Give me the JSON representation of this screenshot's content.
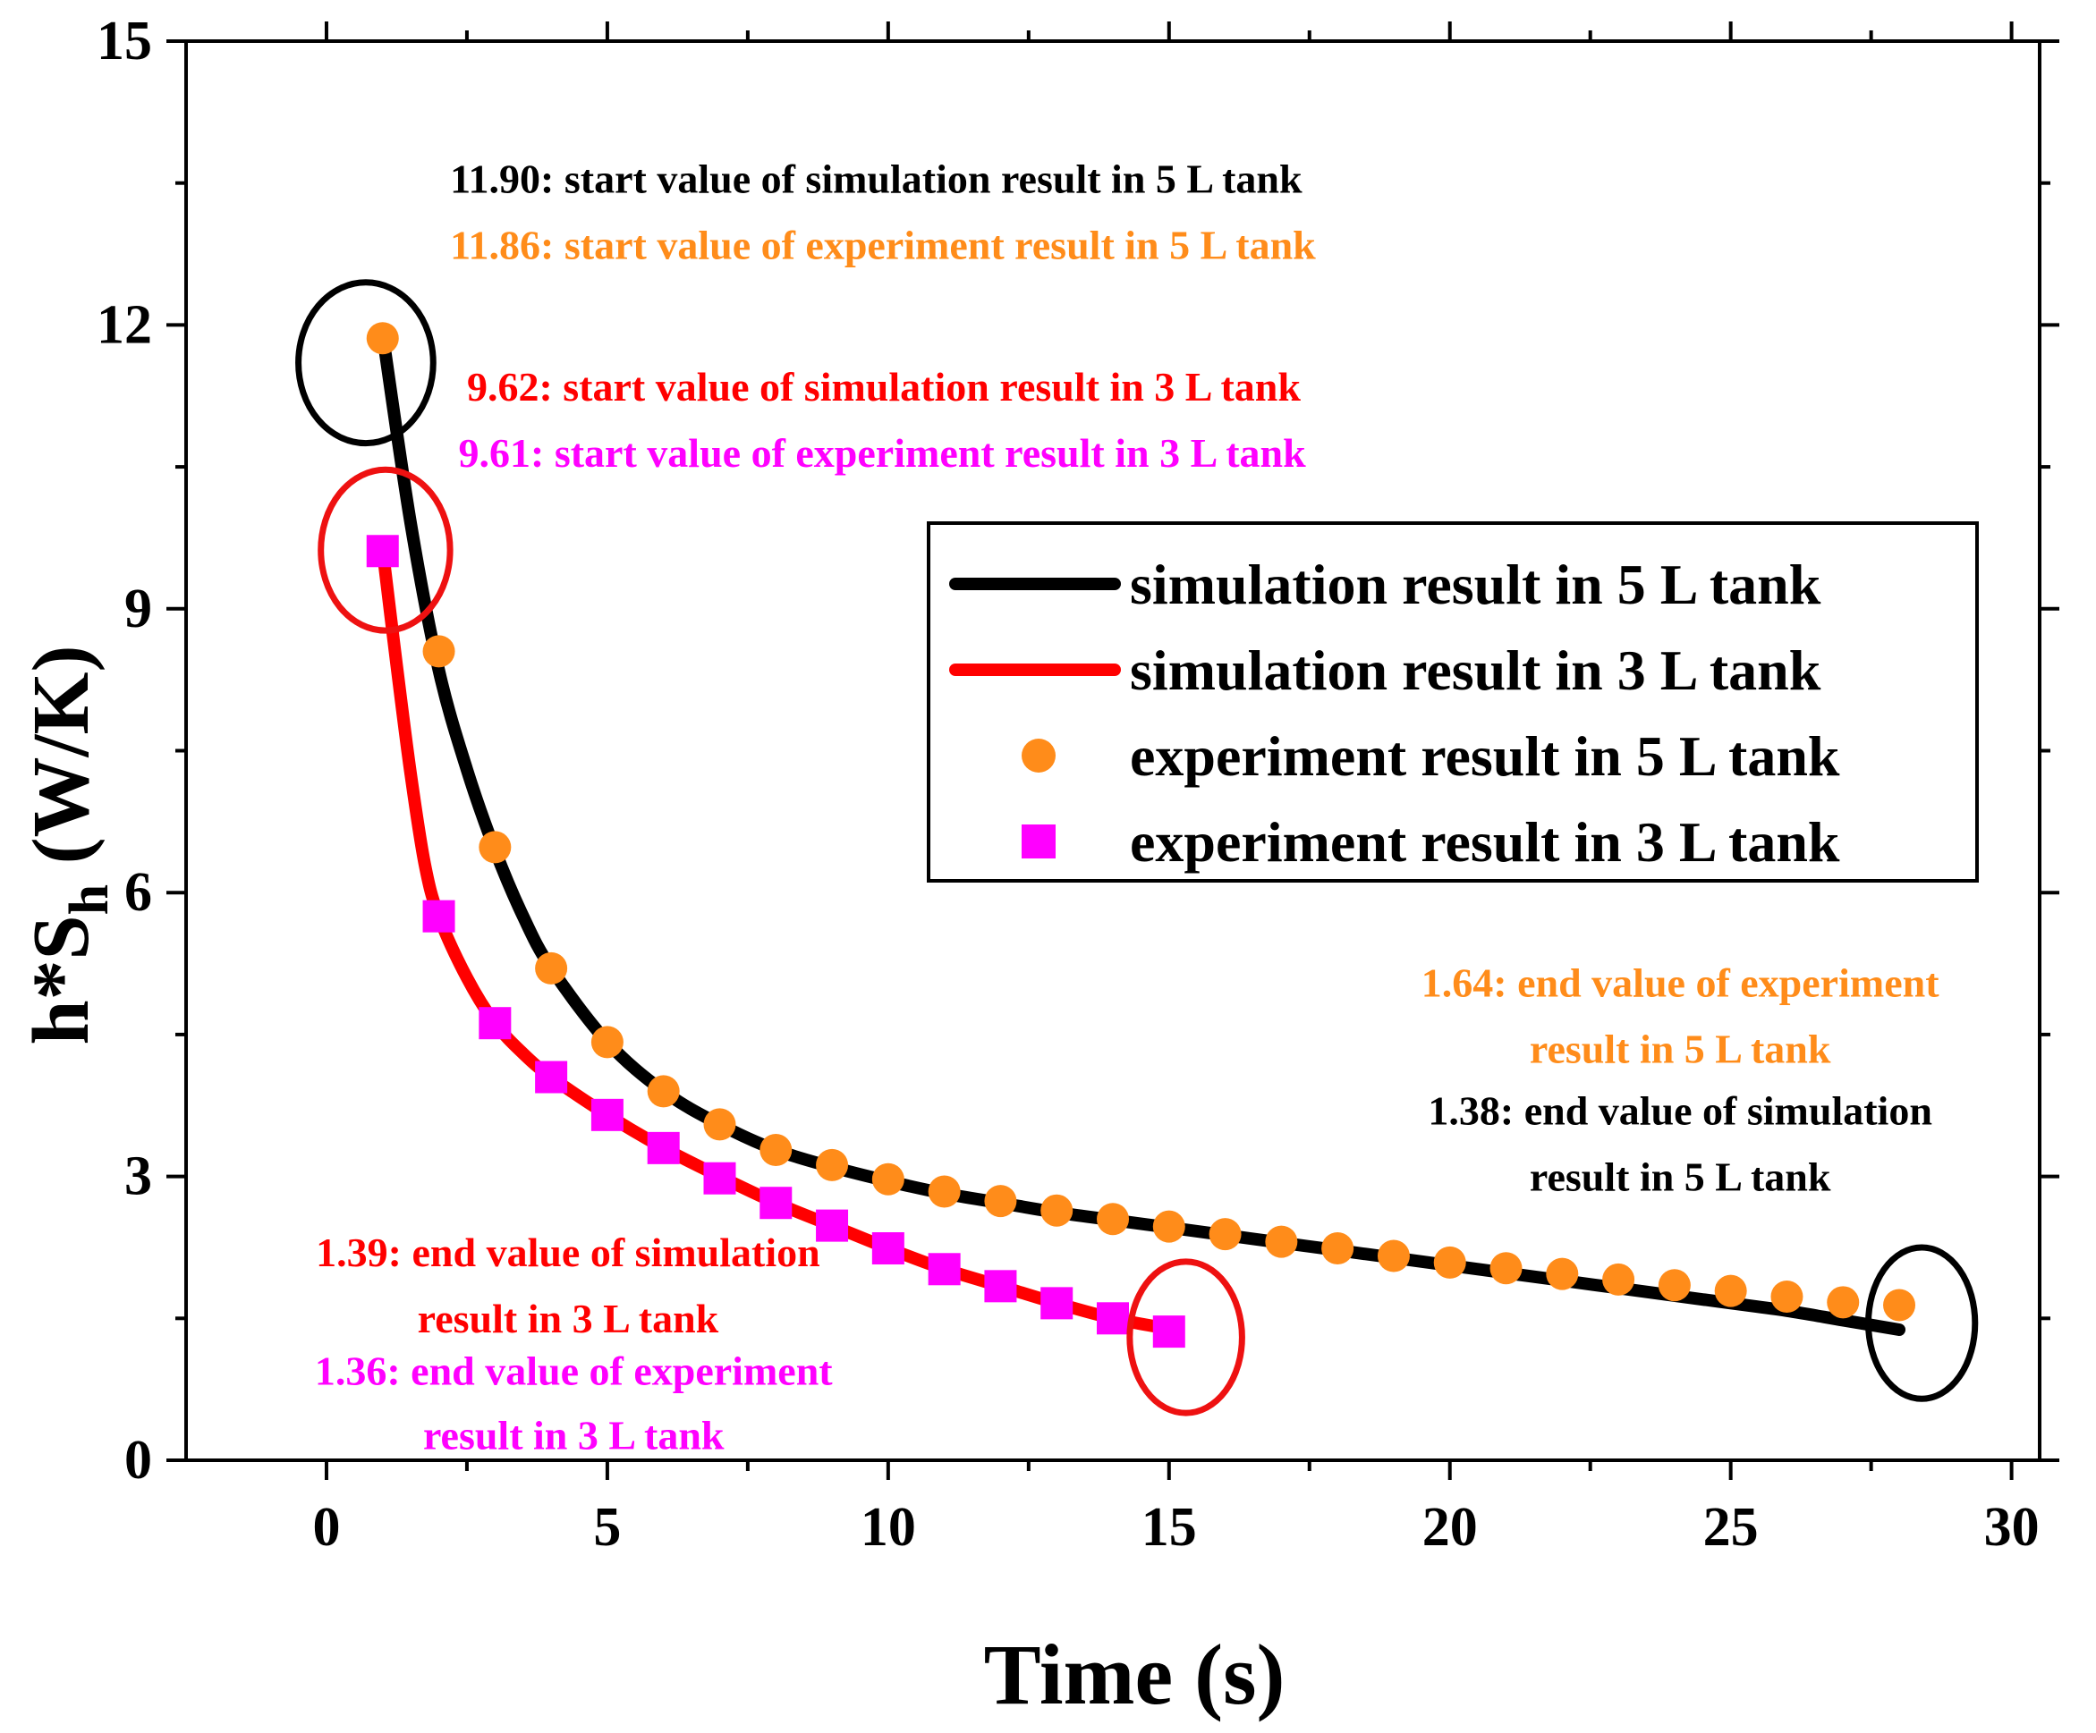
{
  "chart_data": {
    "type": "line",
    "title": "",
    "xlabel": "Time (s)",
    "ylabel": {
      "main": "h*S",
      "sub": "h",
      "unit": " (W/K)"
    },
    "xlim": [
      -2.5,
      30.5
    ],
    "ylim": [
      0,
      15
    ],
    "x_ticks": [
      0,
      5,
      10,
      15,
      20,
      25,
      30
    ],
    "y_ticks": [
      0,
      3,
      6,
      9,
      12,
      15
    ],
    "x_tick_labels": [
      "0",
      "5",
      "10",
      "15",
      "20",
      "25",
      "30"
    ],
    "y_tick_labels": [
      "0",
      "3",
      "6",
      "9",
      "12",
      "15"
    ],
    "grid": false,
    "legend_position": "right-center",
    "series": [
      {
        "name": "simulation result in 5 L tank",
        "kind": "line",
        "color": "#000000",
        "x": [
          1,
          1.5,
          2,
          2.5,
          3,
          3.5,
          4,
          5,
          6,
          7,
          8,
          9,
          10,
          11,
          12,
          13,
          14,
          15,
          16,
          17,
          18,
          19,
          20,
          21,
          22,
          23,
          24,
          25,
          26,
          27,
          28
        ],
        "y": [
          11.9,
          9.9,
          8.35,
          7.3,
          6.45,
          5.75,
          5.2,
          4.42,
          3.9,
          3.55,
          3.28,
          3.1,
          2.95,
          2.82,
          2.72,
          2.62,
          2.54,
          2.46,
          2.38,
          2.3,
          2.22,
          2.14,
          2.06,
          1.98,
          1.9,
          1.82,
          1.74,
          1.66,
          1.58,
          1.48,
          1.38
        ]
      },
      {
        "name": "simulation result in 3 L tank",
        "kind": "line",
        "color": "#ff0000",
        "x": [
          1,
          1.25,
          1.5,
          1.75,
          2,
          2.5,
          3,
          3.5,
          4,
          5,
          6,
          7,
          8,
          9,
          10,
          11,
          12,
          13,
          14,
          15
        ],
        "y": [
          9.62,
          8.4,
          7.25,
          6.3,
          5.75,
          5.1,
          4.62,
          4.3,
          4.05,
          3.65,
          3.3,
          3.0,
          2.72,
          2.48,
          2.24,
          2.02,
          1.84,
          1.66,
          1.5,
          1.39
        ]
      },
      {
        "name": "experiment result in 5 L tank",
        "kind": "scatter",
        "marker": "circle",
        "color": "#ff8c1a",
        "x": [
          1,
          2,
          3,
          4,
          5,
          6,
          7,
          8,
          9,
          10,
          11,
          12,
          13,
          14,
          15,
          16,
          17,
          18,
          19,
          20,
          21,
          22,
          23,
          24,
          25,
          26,
          27,
          28
        ],
        "y": [
          11.86,
          8.55,
          6.48,
          5.2,
          4.42,
          3.9,
          3.55,
          3.28,
          3.12,
          2.97,
          2.84,
          2.74,
          2.64,
          2.55,
          2.47,
          2.39,
          2.31,
          2.24,
          2.16,
          2.09,
          2.03,
          1.97,
          1.91,
          1.85,
          1.79,
          1.73,
          1.67,
          1.64
        ]
      },
      {
        "name": "experiment result in 3 L tank",
        "kind": "scatter",
        "marker": "square",
        "color": "#ff00ff",
        "x": [
          1,
          2,
          3,
          4,
          5,
          6,
          7,
          8,
          9,
          10,
          11,
          12,
          13,
          14,
          15
        ],
        "y": [
          9.61,
          5.75,
          4.62,
          4.05,
          3.65,
          3.3,
          2.98,
          2.72,
          2.48,
          2.24,
          2.02,
          1.84,
          1.66,
          1.5,
          1.36
        ]
      }
    ],
    "highlight_circles": [
      {
        "name": "start-5L",
        "color": "#000000",
        "cx": 0.7,
        "cy": 11.6,
        "rx": 1.2,
        "ry": 0.85
      },
      {
        "name": "start-3L",
        "color": "#ee1111",
        "cx": 1.05,
        "cy": 9.62,
        "rx": 1.15,
        "ry": 0.85
      },
      {
        "name": "end-3L",
        "color": "#ee1111",
        "cx": 15.3,
        "cy": 1.3,
        "rx": 1.0,
        "ry": 0.8
      },
      {
        "name": "end-5L",
        "color": "#000000",
        "cx": 28.4,
        "cy": 1.45,
        "rx": 0.95,
        "ry": 0.8
      }
    ],
    "annotations": [
      {
        "id": "sim5-start",
        "text": "11.90: start value of simulation result in 5 L tank",
        "color": "#000000",
        "x": 2.2,
        "y": 13.4,
        "anchor": "start"
      },
      {
        "id": "exp5-start",
        "text": "11.86: start value of experiment result in 5 L tank",
        "color": "#ff8c1a",
        "x": 2.2,
        "y": 12.7,
        "anchor": "start"
      },
      {
        "id": "sim3-start",
        "text": "9.62: start value of simulation  result in 3 L tank",
        "color": "#ff0000",
        "x": 2.5,
        "y": 11.2,
        "anchor": "start"
      },
      {
        "id": "exp3-start",
        "text": "9.61: start value of experiment result in 3 L tank",
        "color": "#ff00ff",
        "x": 2.35,
        "y": 10.5,
        "anchor": "start"
      },
      {
        "id": "exp5-end-1",
        "text": "1.64: end value of experiment",
        "color": "#ff8c1a",
        "x": 24.1,
        "y": 4.9,
        "anchor": "middle"
      },
      {
        "id": "exp5-end-2",
        "text": "result in 5 L tank",
        "color": "#ff8c1a",
        "x": 24.1,
        "y": 4.2,
        "anchor": "middle"
      },
      {
        "id": "sim5-end-1",
        "text": "1.38: end value of simulation",
        "color": "#000000",
        "x": 24.1,
        "y": 3.55,
        "anchor": "middle"
      },
      {
        "id": "sim5-end-2",
        "text": "result in 5 L tank",
        "color": "#000000",
        "x": 24.1,
        "y": 2.85,
        "anchor": "middle"
      },
      {
        "id": "sim3-end-1",
        "text": "1.39: end value of simulation",
        "color": "#ff0000",
        "x": 4.3,
        "y": 2.05,
        "anchor": "middle"
      },
      {
        "id": "sim3-end-2",
        "text": "result in 3 L tank",
        "color": "#ff0000",
        "x": 4.3,
        "y": 1.35,
        "anchor": "middle"
      },
      {
        "id": "exp3-end-1",
        "text": "1.36: end value of experiment",
        "color": "#ff00ff",
        "x": 4.4,
        "y": 0.8,
        "anchor": "middle"
      },
      {
        "id": "exp3-end-2",
        "text": "result in 3 L tank",
        "color": "#ff00ff",
        "x": 4.4,
        "y": 0.12,
        "anchor": "middle"
      }
    ]
  }
}
